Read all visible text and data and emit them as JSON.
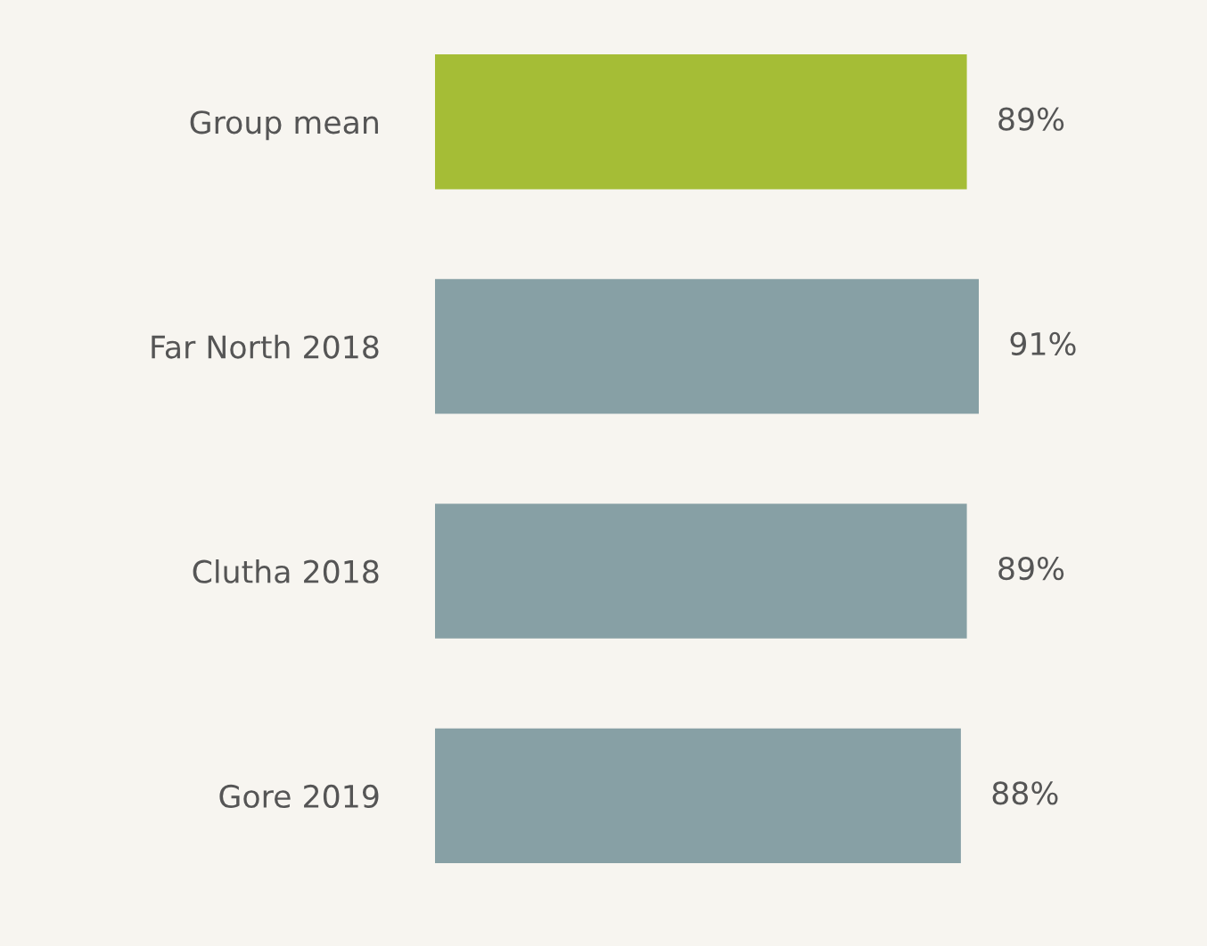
{
  "chart_data": {
    "type": "bar",
    "orientation": "horizontal",
    "categories": [
      "Group mean",
      "Far North 2018",
      "Clutha 2018",
      "Gore 2019"
    ],
    "values": [
      89,
      91,
      89,
      88
    ],
    "colors": [
      "#a5bd36",
      "#87a0a5",
      "#87a0a5",
      "#87a0a5"
    ],
    "value_labels": [
      "89%",
      "91%",
      "89%",
      "88%"
    ],
    "grid": false,
    "legend": false
  }
}
